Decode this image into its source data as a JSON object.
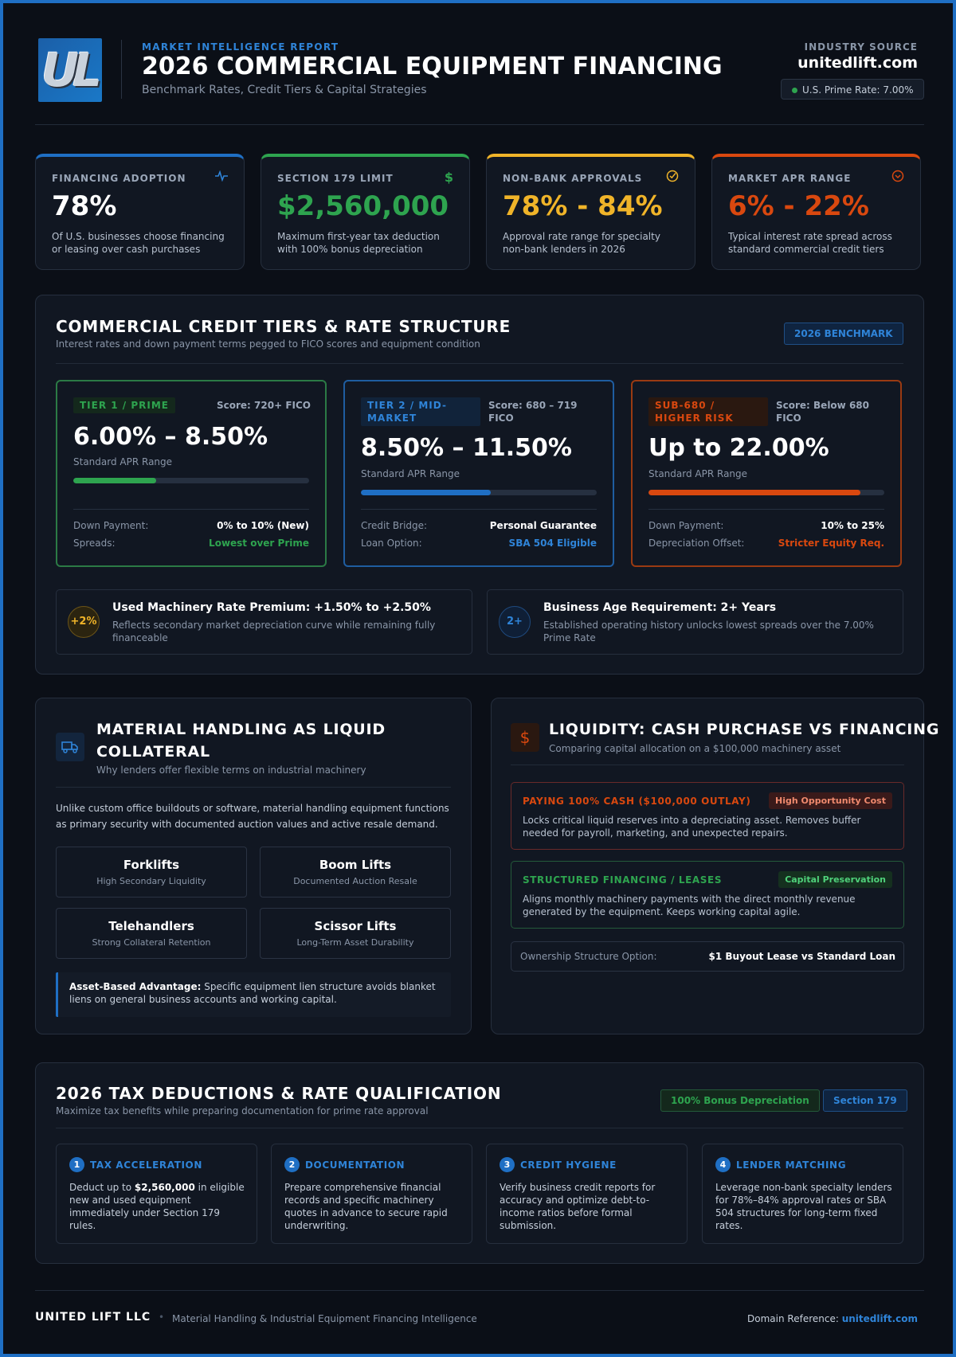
{
  "header": {
    "logo_text": "UL",
    "kicker": "MARKET INTELLIGENCE REPORT",
    "title": "2026 COMMERCIAL EQUIPMENT FINANCING",
    "subtitle": "Benchmark Rates, Credit Tiers & Capital Strategies",
    "source_label": "INDUSTRY SOURCE",
    "source_domain": "unitedlift.com",
    "prime_rate": "U.S. Prime Rate: 7.00%"
  },
  "stats": [
    {
      "label": "FINANCING ADOPTION",
      "value": "78%",
      "desc": "Of U.S. businesses choose financing or leasing over cash purchases",
      "icon": "pulse-icon",
      "color": "#1f6fc4"
    },
    {
      "label": "SECTION 179 LIMIT",
      "value": "$2,560,000",
      "desc": "Maximum first-year tax deduction with 100% bonus depreciation",
      "icon": "dollar-icon",
      "color": "#2ea44f"
    },
    {
      "label": "NON-BANK APPROVALS",
      "value": "78% - 84%",
      "desc": "Approval rate range for specialty non-bank lenders in 2026",
      "icon": "check-circle-icon",
      "color": "#f0b429"
    },
    {
      "label": "MARKET APR RANGE",
      "value": "6% - 22%",
      "desc": "Typical interest rate spread across standard commercial credit tiers",
      "icon": "chevron-circle-icon",
      "color": "#d9480f"
    }
  ],
  "tiers_section": {
    "title": "COMMERCIAL CREDIT TIERS & RATE STRUCTURE",
    "subtitle": "Interest rates and down payment terms pegged to FICO scores and equipment condition",
    "badge": "2026 BENCHMARK",
    "tiers": [
      {
        "tag": "TIER 1 / PRIME",
        "score": "Score: 720+ FICO",
        "rate": "6.00% – 8.50%",
        "rate_label": "Standard APR Range",
        "bar_fill": 0.35,
        "color": "#2ea44f",
        "rows": [
          {
            "k": "Down Payment:",
            "v": "0% to 10% (New)"
          },
          {
            "k": "Spreads:",
            "v": "Lowest over Prime"
          }
        ]
      },
      {
        "tag": "TIER 2 / MID-MARKET",
        "score": "Score: 680 – 719 FICO",
        "rate": "8.50% – 11.50%",
        "rate_label": "Standard APR Range",
        "bar_fill": 0.55,
        "color": "#1f6fc4",
        "rows": [
          {
            "k": "Credit Bridge:",
            "v": "Personal Guarantee"
          },
          {
            "k": "Loan Option:",
            "v": "SBA 504 Eligible"
          }
        ]
      },
      {
        "tag": "SUB-680 / HIGHER RISK",
        "score": "Score: Below 680 FICO",
        "rate": "Up to 22.00%",
        "rate_label": "Standard APR Range",
        "bar_fill": 0.9,
        "color": "#d9480f",
        "rows": [
          {
            "k": "Down Payment:",
            "v": "10% to 25%"
          },
          {
            "k": "Depreciation Offset:",
            "v": "Stricter Equity Req."
          }
        ]
      }
    ],
    "notes": [
      {
        "icon_text": "+2%",
        "title": "Used Machinery Rate Premium: +1.50% to +2.50%",
        "desc": "Reflects secondary market depreciation curve while remaining fully financeable"
      },
      {
        "icon_text": "2+",
        "title": "Business Age Requirement: 2+ Years",
        "desc": "Established operating history unlocks lowest spreads over the 7.00% Prime Rate"
      }
    ]
  },
  "material": {
    "title": "MATERIAL HANDLING AS LIQUID COLLATERAL",
    "subtitle": "Why lenders offer flexible terms on industrial machinery",
    "intro": "Unlike custom office buildouts or software, material handling equipment functions as primary security with documented auction values and active resale demand.",
    "items": [
      {
        "name": "Forklifts",
        "sub": "High Secondary Liquidity"
      },
      {
        "name": "Boom Lifts",
        "sub": "Documented Auction Resale"
      },
      {
        "name": "Telehandlers",
        "sub": "Strong Collateral Retention"
      },
      {
        "name": "Scissor Lifts",
        "sub": "Long-Term Asset Durability"
      }
    ],
    "callout_bold": "Asset-Based Advantage:",
    "callout_text": " Specific equipment lien structure avoids blanket liens on general business accounts and working capital."
  },
  "liquidity": {
    "title": "LIQUIDITY: CASH PURCHASE VS FINANCING",
    "subtitle": "Comparing capital allocation on a $100,000 machinery asset",
    "icon_glyph": "$",
    "cash": {
      "title": "PAYING 100% CASH ($100,000 OUTLAY)",
      "badge": "High Opportunity Cost",
      "desc": "Locks critical liquid reserves into a depreciating asset. Removes buffer needed for payroll, marketing, and unexpected repairs."
    },
    "finance": {
      "title": "STRUCTURED FINANCING / LEASES",
      "badge": "Capital Preservation",
      "desc": "Aligns monthly machinery payments with the direct monthly revenue generated by the equipment. Keeps working capital agile."
    },
    "ownership_label": "Ownership Structure Option:",
    "ownership_value": "$1 Buyout Lease vs Standard Loan"
  },
  "tax": {
    "title": "2026 TAX DEDUCTIONS & RATE QUALIFICATION",
    "subtitle": "Maximize tax benefits while preparing documentation for prime rate approval",
    "badge_green": "100% Bonus Depreciation",
    "badge_blue": "Section 179",
    "steps": [
      {
        "num": "1",
        "title": "TAX ACCELERATION",
        "desc_pre": "Deduct up to ",
        "desc_bold": "$2,560,000",
        "desc_post": " in eligible new and used equipment immediately under Section 179 rules."
      },
      {
        "num": "2",
        "title": "DOCUMENTATION",
        "desc_pre": "Prepare comprehensive financial records and specific machinery quotes in advance to secure rapid underwriting.",
        "desc_bold": "",
        "desc_post": ""
      },
      {
        "num": "3",
        "title": "CREDIT HYGIENE",
        "desc_pre": "Verify business credit reports for accuracy and optimize debt-to-income ratios before formal submission.",
        "desc_bold": "",
        "desc_post": ""
      },
      {
        "num": "4",
        "title": "LENDER MATCHING",
        "desc_pre": "Leverage non-bank specialty lenders for 78%–84% approval rates or SBA 504 structures for long-term fixed rates.",
        "desc_bold": "",
        "desc_post": ""
      }
    ]
  },
  "footer": {
    "company": "UNITED LIFT LLC",
    "separator": "•",
    "tagline": "Material Handling & Industrial Equipment Financing Intelligence",
    "ref_label": "Domain Reference:",
    "ref_domain": "unitedlift.com"
  }
}
